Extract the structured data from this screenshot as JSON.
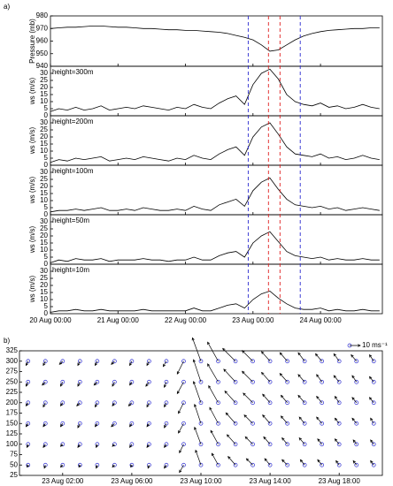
{
  "chart_data": [
    {
      "type": "line",
      "panel_label": "a)",
      "color": "#000000",
      "x": [
        0,
        3,
        6,
        9,
        12,
        15,
        18,
        21,
        24,
        27,
        30,
        33,
        36,
        39,
        42,
        45,
        48,
        51,
        54,
        57,
        60,
        63,
        66,
        69,
        72,
        75,
        78,
        81,
        84,
        87,
        90,
        93,
        96,
        99,
        102,
        105,
        108,
        111,
        114,
        117
      ],
      "xlim": [
        0,
        118
      ],
      "xticks": [
        {
          "value": 0,
          "label": "20 Aug 00:00"
        },
        {
          "value": 24,
          "label": "21 Aug 00:00"
        },
        {
          "value": 48,
          "label": "22 Aug 00:00"
        },
        {
          "value": 72,
          "label": "23 Aug 00:00"
        },
        {
          "value": 96,
          "label": "24 Aug 00:00"
        }
      ],
      "vlines": [
        {
          "value": 70.3,
          "color": "#2b2bd0"
        },
        {
          "value": 77.5,
          "color": "#e02020"
        },
        {
          "value": 81.6,
          "color": "#e02020"
        },
        {
          "value": 88.8,
          "color": "#2b2bd0"
        }
      ],
      "panels": [
        {
          "ylabel": "Pressure (mb)",
          "ylim": [
            940,
            980
          ],
          "yticks": [
            940,
            950,
            960,
            970,
            980
          ],
          "values": [
            970,
            970.5,
            971,
            971,
            971.5,
            972,
            972,
            971.5,
            971,
            971,
            970.5,
            970,
            970,
            969.5,
            969,
            969,
            968.5,
            968.5,
            968,
            967.5,
            967,
            966,
            964.5,
            963,
            961,
            957,
            952,
            953,
            957,
            961,
            964,
            966,
            967.5,
            968.5,
            969,
            969.5,
            970,
            970,
            970.5,
            970.5
          ]
        },
        {
          "ylabel": "ws (m/s)",
          "label": "height=300m",
          "ylim": [
            0,
            35
          ],
          "yticks": [
            0,
            5,
            10,
            15,
            20,
            25,
            30
          ],
          "values": [
            3,
            5,
            4,
            6,
            4,
            5,
            7,
            4,
            5,
            6,
            5,
            7,
            6,
            5,
            4,
            6,
            5,
            8,
            6,
            5,
            9,
            12,
            14,
            8,
            22,
            30,
            33,
            26,
            15,
            10,
            8,
            7,
            9,
            6,
            7,
            5,
            6,
            8,
            6,
            5
          ]
        },
        {
          "ylabel": "ws (m/s)",
          "label": "height=200m",
          "ylim": [
            0,
            35
          ],
          "yticks": [
            0,
            5,
            10,
            15,
            20,
            25,
            30
          ],
          "values": [
            2,
            4,
            3,
            5,
            4,
            5,
            6,
            3,
            4,
            5,
            4,
            6,
            5,
            4,
            3,
            5,
            4,
            7,
            5,
            4,
            8,
            11,
            13,
            7,
            20,
            27,
            30,
            22,
            13,
            8,
            7,
            6,
            8,
            5,
            6,
            4,
            5,
            7,
            5,
            4
          ]
        },
        {
          "ylabel": "ws (m/s)",
          "label": "height=100m",
          "ylim": [
            0,
            35
          ],
          "yticks": [
            0,
            5,
            10,
            15,
            20,
            25,
            30
          ],
          "values": [
            2,
            3,
            3,
            4,
            3,
            4,
            5,
            3,
            3,
            4,
            3,
            5,
            4,
            3,
            3,
            4,
            3,
            6,
            4,
            3,
            7,
            9,
            11,
            6,
            17,
            23,
            26,
            18,
            11,
            7,
            6,
            5,
            6,
            4,
            5,
            3,
            4,
            5,
            4,
            3
          ]
        },
        {
          "ylabel": "ws (m/s)",
          "label": "height=50m",
          "ylim": [
            0,
            35
          ],
          "yticks": [
            0,
            5,
            10,
            15,
            20,
            25,
            30
          ],
          "values": [
            1,
            3,
            2,
            4,
            3,
            3,
            4,
            2,
            3,
            3,
            3,
            4,
            3,
            3,
            2,
            3,
            3,
            5,
            3,
            3,
            6,
            8,
            9,
            5,
            15,
            20,
            23,
            16,
            9,
            6,
            5,
            4,
            5,
            3,
            4,
            3,
            3,
            4,
            3,
            3
          ]
        },
        {
          "ylabel": "ws (m/s)",
          "label": "height=10m",
          "ylim": [
            0,
            35
          ],
          "yticks": [
            0,
            5,
            10,
            15,
            20,
            25,
            30
          ],
          "values": [
            1,
            2,
            2,
            3,
            2,
            2,
            3,
            2,
            2,
            2,
            2,
            3,
            2,
            2,
            2,
            2,
            2,
            4,
            2,
            2,
            4,
            6,
            7,
            4,
            10,
            14,
            16,
            11,
            7,
            4,
            3,
            3,
            4,
            2,
            3,
            2,
            2,
            3,
            2,
            2
          ]
        }
      ]
    },
    {
      "type": "quiver",
      "panel_label": "b)",
      "color": "#000000",
      "origin_color": "#2b2bd0",
      "x": [
        0,
        1,
        2,
        3,
        4,
        5,
        6,
        7,
        8,
        9,
        10,
        11,
        12,
        13,
        14,
        15,
        16,
        17,
        18,
        19,
        20
      ],
      "xlim": [
        -0.5,
        20.5
      ],
      "xticks": [
        {
          "value": 2,
          "label": "23 Aug 02:00"
        },
        {
          "value": 6,
          "label": "23 Aug 06:00"
        },
        {
          "value": 10,
          "label": "23 Aug 10:00"
        },
        {
          "value": 14,
          "label": "23 Aug 14:00"
        },
        {
          "value": 18,
          "label": "23 Aug 18:00"
        }
      ],
      "ylim": [
        25,
        325
      ],
      "yticks": [
        25,
        50,
        75,
        100,
        125,
        150,
        175,
        200,
        225,
        250,
        275,
        300,
        325
      ],
      "reference": {
        "value": 10,
        "label": "10 ms⁻¹"
      },
      "rows": [
        {
          "height": 300,
          "u": [
            -2,
            -2,
            -3,
            -2,
            -2,
            -3,
            -2,
            -2,
            -3,
            -6,
            -8,
            -10,
            -12,
            -10,
            -8,
            -7,
            -6,
            -6,
            -5,
            -5,
            -4
          ],
          "v": [
            -4,
            -4,
            -3,
            -4,
            -4,
            -3,
            -4,
            -4,
            -5,
            -12,
            22,
            18,
            12,
            10,
            9,
            8,
            8,
            7,
            7,
            6,
            6
          ]
        },
        {
          "height": 250,
          "u": [
            -2,
            -3,
            -2,
            -2,
            -3,
            -2,
            -2,
            -3,
            -2,
            -6,
            -7,
            -10,
            -11,
            -10,
            -8,
            -7,
            -6,
            -5,
            -5,
            -4,
            -4
          ],
          "v": [
            -4,
            -3,
            -4,
            -4,
            -3,
            -4,
            -3,
            -4,
            -5,
            -11,
            21,
            17,
            12,
            10,
            9,
            8,
            7,
            7,
            6,
            6,
            5
          ]
        },
        {
          "height": 200,
          "u": [
            -2,
            -2,
            -2,
            -3,
            -2,
            -2,
            -3,
            -2,
            -2,
            -5,
            -7,
            -9,
            -10,
            -9,
            -7,
            -6,
            -6,
            -5,
            -4,
            -4,
            -4
          ],
          "v": [
            -3,
            -4,
            -3,
            -3,
            -4,
            -3,
            -3,
            -4,
            -4,
            -10,
            20,
            16,
            11,
            9,
            8,
            7,
            7,
            6,
            6,
            5,
            5
          ]
        },
        {
          "height": 150,
          "u": [
            -2,
            -2,
            -2,
            -2,
            -2,
            -3,
            -2,
            -2,
            -2,
            -5,
            -6,
            -8,
            -9,
            -8,
            -7,
            -6,
            -5,
            -5,
            -4,
            -4,
            -3
          ],
          "v": [
            -3,
            -3,
            -3,
            -4,
            -3,
            -3,
            -3,
            -3,
            -4,
            -9,
            18,
            15,
            10,
            8,
            8,
            7,
            6,
            6,
            5,
            5,
            5
          ]
        },
        {
          "height": 100,
          "u": [
            -1,
            -2,
            -2,
            -2,
            -1,
            -2,
            -2,
            -2,
            -2,
            -4,
            -6,
            -7,
            -8,
            -7,
            -6,
            -5,
            -5,
            -4,
            -4,
            -3,
            -3
          ],
          "v": [
            -3,
            -3,
            -2,
            -3,
            -3,
            -2,
            -3,
            -3,
            -3,
            -8,
            16,
            13,
            9,
            7,
            7,
            6,
            6,
            5,
            5,
            4,
            4
          ]
        },
        {
          "height": 50,
          "u": [
            -1,
            -1,
            -2,
            -1,
            -1,
            -2,
            -1,
            -1,
            -2,
            -4,
            -5,
            -6,
            -7,
            -6,
            -5,
            -5,
            -4,
            -4,
            -3,
            -3,
            -3
          ],
          "v": [
            -2,
            -3,
            -2,
            -2,
            -3,
            -2,
            -2,
            -3,
            -3,
            -7,
            14,
            11,
            8,
            6,
            6,
            5,
            5,
            5,
            4,
            4,
            4
          ]
        }
      ]
    }
  ]
}
